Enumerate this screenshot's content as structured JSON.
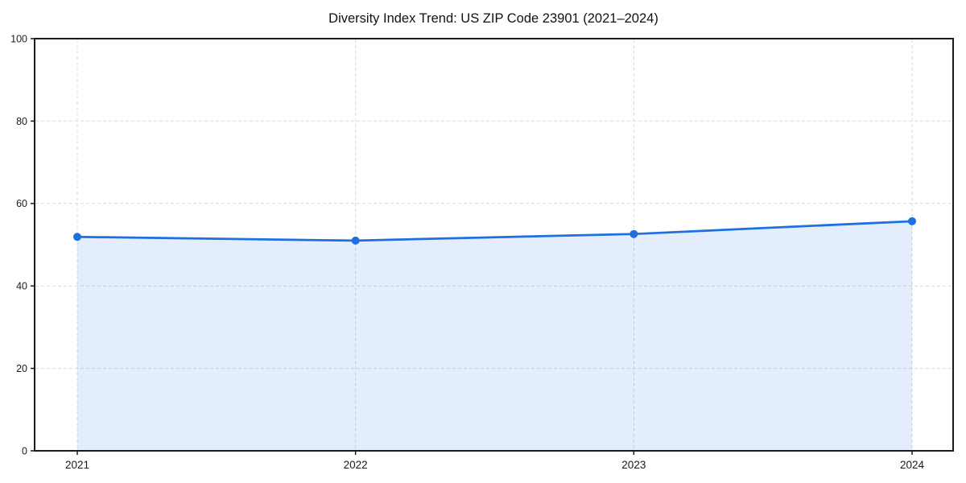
{
  "page": {
    "background": "#ffffff"
  },
  "chart_data": {
    "type": "line",
    "title": "Diversity Index Trend: US ZIP Code 23901 (2021–2024)",
    "x": [
      "2021",
      "2022",
      "2023",
      "2024"
    ],
    "series": [
      {
        "name": "Diversity Index",
        "values": [
          51.9,
          51.0,
          52.6,
          55.7
        ]
      }
    ],
    "xlabel": "",
    "ylabel": "",
    "ylim": [
      0,
      100
    ],
    "yticks": [
      0,
      20,
      40,
      60,
      80,
      100
    ],
    "grid": "dashed",
    "grid_axes": "both",
    "legend": "none",
    "area_fill": true,
    "markers": true,
    "colors": {
      "line": "#1e6fe0",
      "fill": "rgba(30, 111, 224, 0.12)",
      "grid": "#d9d9d9",
      "spine": "#1a1a1a",
      "text": "#1a1a1a",
      "background": "#ffffff"
    }
  }
}
